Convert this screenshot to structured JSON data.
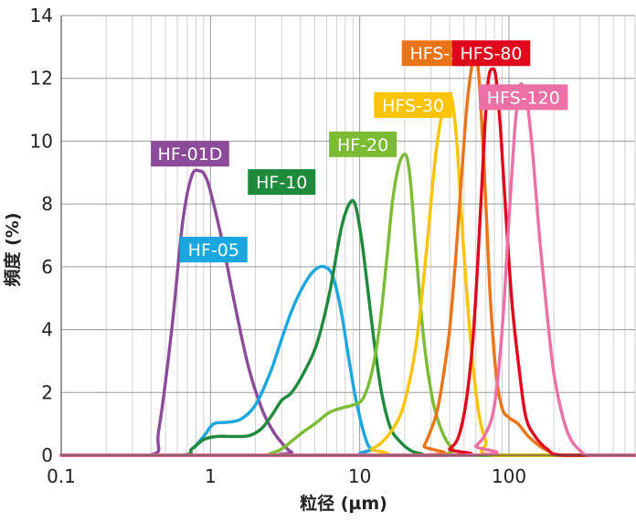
{
  "chart_data": {
    "type": "line",
    "xlabel": "粒径 (µm)",
    "ylabel": "頻度 (%)",
    "x_scale": "log",
    "xlim": [
      0.1,
      700
    ],
    "ylim": [
      0,
      14
    ],
    "grid": true,
    "x_ticks": [
      {
        "value": 0.1,
        "label": "0.1"
      },
      {
        "value": 1,
        "label": "1"
      },
      {
        "value": 10,
        "label": "10"
      },
      {
        "value": 100,
        "label": "100"
      }
    ],
    "y_ticks": [
      {
        "value": 0,
        "label": "0"
      },
      {
        "value": 2,
        "label": "2"
      },
      {
        "value": 4,
        "label": "4"
      },
      {
        "value": 6,
        "label": "6"
      },
      {
        "value": 8,
        "label": "8"
      },
      {
        "value": 10,
        "label": "10"
      },
      {
        "value": 12,
        "label": "12"
      },
      {
        "value": 14,
        "label": "14"
      }
    ],
    "series": [
      {
        "name": "HF-01D",
        "color": "#8b4a9a",
        "label_at": [
          0.73,
          9.6
        ],
        "x": [
          0.1,
          0.39,
          0.45,
          0.55,
          0.65,
          0.75,
          0.85,
          0.92,
          1.0,
          1.2,
          1.5,
          1.8,
          2.2,
          2.6,
          3.0,
          3.5,
          4.5,
          700
        ],
        "y": [
          0,
          0,
          0.8,
          4.0,
          7.4,
          8.9,
          9.05,
          8.9,
          8.4,
          6.8,
          4.5,
          2.8,
          1.5,
          0.8,
          0.4,
          0.1,
          0,
          0
        ]
      },
      {
        "name": "HF-05",
        "color": "#1aa6df",
        "label_at": [
          1.05,
          6.55
        ],
        "x": [
          0.1,
          0.6,
          0.75,
          0.9,
          1.05,
          1.3,
          1.6,
          2.0,
          2.5,
          3.0,
          3.5,
          4.2,
          5.0,
          5.8,
          6.6,
          7.5,
          8.5,
          9.5,
          11,
          12,
          14,
          700
        ],
        "y": [
          0,
          0,
          0.2,
          0.6,
          1.0,
          1.05,
          1.15,
          1.6,
          2.6,
          3.7,
          4.6,
          5.4,
          5.9,
          6.0,
          5.7,
          4.6,
          3.0,
          1.7,
          0.5,
          0.2,
          0,
          0
        ]
      },
      {
        "name": "HF-10",
        "color": "#1e8a3c",
        "label_at": [
          3.0,
          8.7
        ],
        "x": [
          0.1,
          0.6,
          0.75,
          0.9,
          1.1,
          1.4,
          1.8,
          2.2,
          2.6,
          3.0,
          3.5,
          4.3,
          5.2,
          6.3,
          7.5,
          8.5,
          9.3,
          10.2,
          11,
          12.5,
          14,
          16,
          18.5,
          22,
          26,
          32,
          700
        ],
        "y": [
          0,
          0,
          0.2,
          0.5,
          0.6,
          0.6,
          0.62,
          0.85,
          1.3,
          1.75,
          2.0,
          2.7,
          3.6,
          5.2,
          7.2,
          8.0,
          8.0,
          7.0,
          5.8,
          3.6,
          2.0,
          0.9,
          0.45,
          0.15,
          0.05,
          0,
          0
        ]
      },
      {
        "name": "HF-20",
        "color": "#7cbb34",
        "label_at": [
          10.5,
          9.9
        ],
        "x": [
          0.1,
          2.0,
          2.5,
          3.0,
          3.5,
          4.2,
          5.0,
          6.2,
          7.5,
          9.0,
          10.5,
          12.0,
          13.5,
          15.0,
          16.5,
          18.0,
          19.5,
          20.8,
          22,
          24,
          27,
          31,
          36,
          42,
          50,
          700
        ],
        "y": [
          0,
          0,
          0.05,
          0.2,
          0.45,
          0.75,
          1.0,
          1.35,
          1.5,
          1.6,
          1.8,
          2.6,
          4.0,
          6.0,
          8.0,
          9.1,
          9.55,
          9.45,
          8.6,
          6.3,
          3.6,
          1.7,
          0.7,
          0.2,
          0,
          0
        ]
      },
      {
        "name": "HFS-30",
        "color": "#fbc300",
        "label_at": [
          22.8,
          11.15
        ],
        "x": [
          0.1,
          10.5,
          12.0,
          14.0,
          17.0,
          20.0,
          24.0,
          28.0,
          32.0,
          36.0,
          39.5,
          42.0,
          45.0,
          49.0,
          55.0,
          62.0,
          70.0,
          80.0,
          700
        ],
        "y": [
          0,
          0,
          0.2,
          0.4,
          0.9,
          1.7,
          3.6,
          6.5,
          9.4,
          11.0,
          11.45,
          11.2,
          9.8,
          7.0,
          3.8,
          1.5,
          0.45,
          0,
          0
        ]
      },
      {
        "name": "HFS-50",
        "color": "#ec7418",
        "label_at": [
          35.0,
          12.8
        ],
        "x": [
          0.1,
          24.0,
          27.0,
          30.0,
          33.0,
          36.0,
          40.0,
          44.0,
          48.0,
          52.0,
          56.0,
          59.5,
          62.0,
          65.0,
          70.0,
          75.0,
          82.0,
          90.0,
          100.0,
          115.0,
          135.0,
          160.0,
          190.0,
          220.0,
          700
        ],
        "y": [
          0,
          0,
          0.3,
          0.8,
          1.4,
          2.4,
          4.0,
          6.3,
          8.8,
          11.0,
          12.3,
          12.7,
          12.4,
          11.0,
          8.0,
          5.0,
          2.6,
          1.5,
          1.2,
          1.0,
          0.6,
          0.3,
          0.1,
          0,
          0
        ]
      },
      {
        "name": "HFS-80",
        "color": "#e0061c",
        "label_at": [
          76.0,
          12.8
        ],
        "x": [
          0.1,
          35.0,
          40.0,
          46.0,
          52.0,
          58.0,
          64.0,
          69.0,
          73.0,
          77.5,
          82.0,
          88.0,
          95.0,
          105.0,
          118.0,
          130.0,
          150.0,
          180.0,
          230.0,
          700
        ],
        "y": [
          0,
          0,
          0.2,
          0.6,
          1.8,
          4.0,
          7.5,
          10.5,
          12.0,
          12.3,
          12.0,
          10.3,
          7.8,
          4.8,
          2.6,
          1.2,
          0.6,
          0.2,
          0,
          0
        ]
      },
      {
        "name": "HFS-120",
        "color": "#ec6fa6",
        "label_at": [
          125.0,
          11.4
        ],
        "x": [
          0.1,
          50.0,
          60.0,
          70.0,
          80.0,
          90.0,
          100.0,
          110.0,
          118.0,
          124.0,
          132.0,
          145.0,
          160.0,
          180.0,
          200.0,
          230.0,
          260.0,
          300.0,
          350.0,
          700
        ],
        "y": [
          0,
          0,
          0.3,
          0.7,
          1.6,
          4.0,
          7.5,
          10.5,
          11.7,
          11.75,
          11.3,
          9.5,
          7.0,
          4.5,
          2.6,
          1.2,
          0.5,
          0.15,
          0,
          0
        ]
      }
    ]
  }
}
